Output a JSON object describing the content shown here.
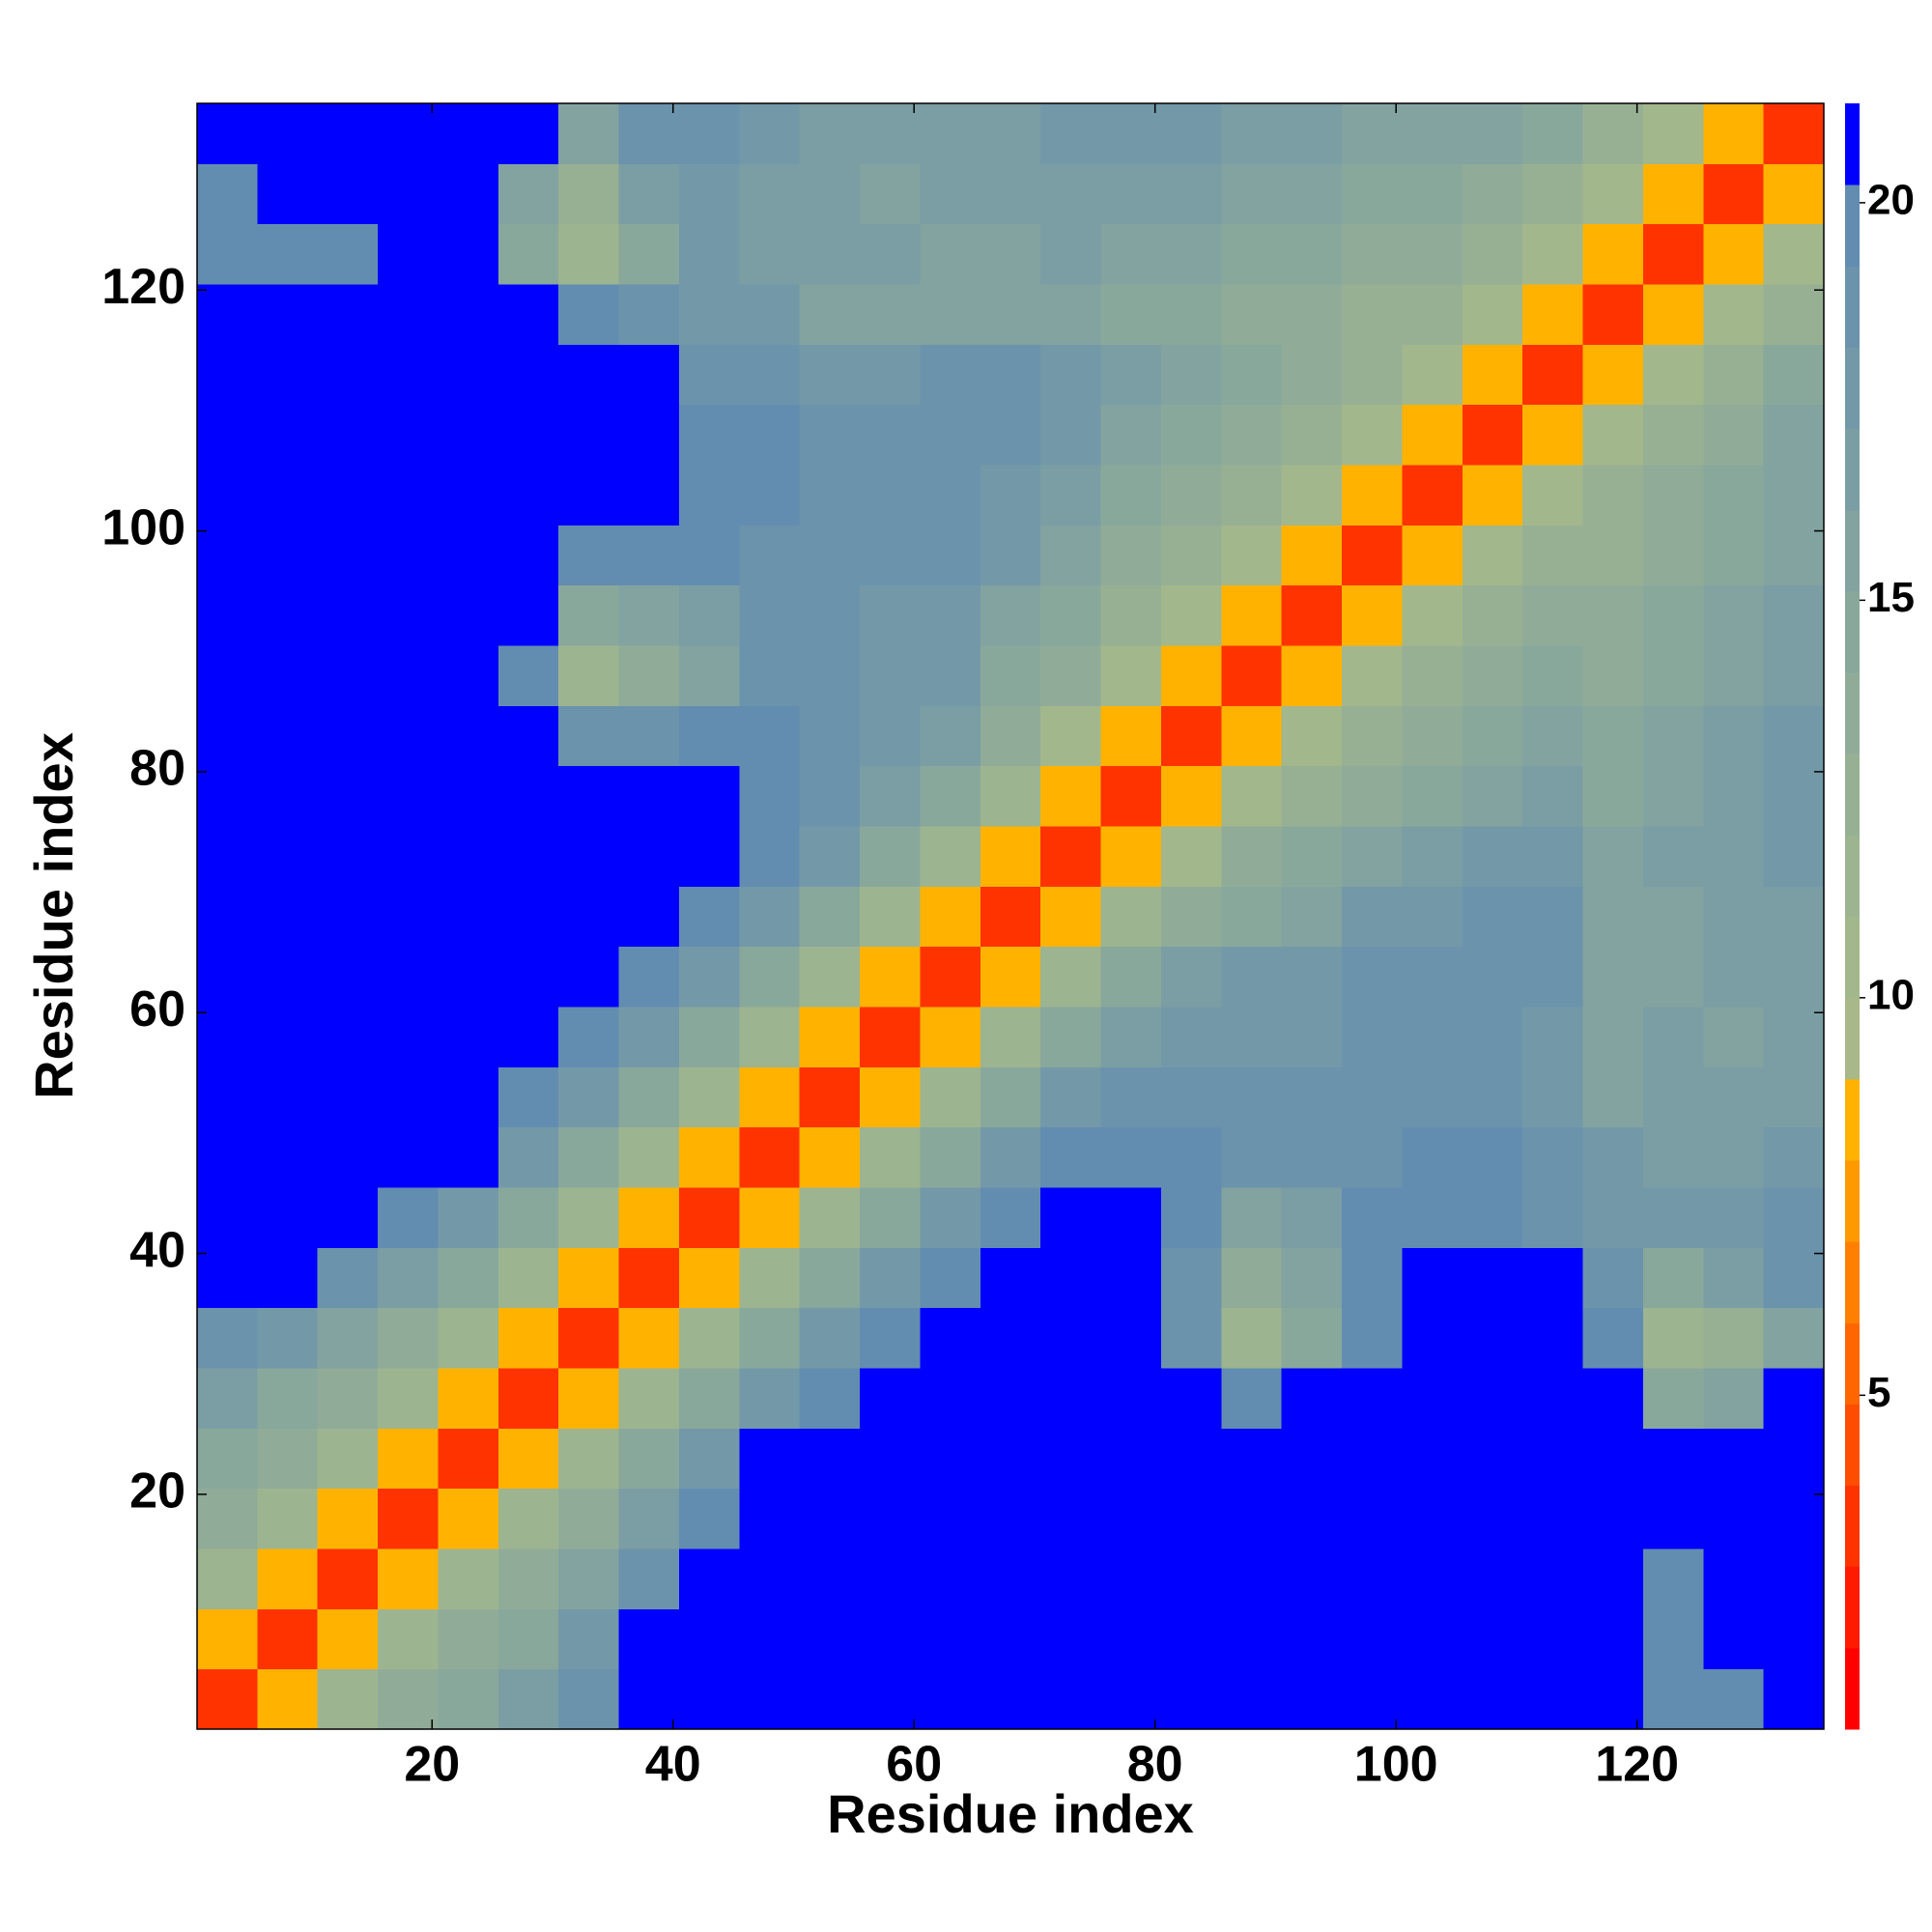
{
  "chart_data": {
    "type": "heatmap",
    "x_label": "Residue index",
    "y_label": "Residue index",
    "x": [
      3,
      8,
      13,
      18,
      23,
      28,
      33,
      38,
      43,
      48,
      53,
      58,
      63,
      68,
      73,
      78,
      83,
      88,
      93,
      98,
      103,
      108,
      113,
      118,
      123,
      128,
      133
    ],
    "y": [
      3,
      8,
      13,
      18,
      23,
      28,
      33,
      38,
      43,
      48,
      53,
      58,
      63,
      68,
      73,
      78,
      83,
      88,
      93,
      98,
      103,
      108,
      113,
      118,
      123,
      128,
      133
    ],
    "xlim": [
      0.5,
      135.5
    ],
    "ylim": [
      0.5,
      135.5
    ],
    "xticks": [
      20,
      40,
      60,
      80,
      100,
      120
    ],
    "yticks": [
      20,
      40,
      60,
      80,
      100,
      120
    ],
    "zlim": [
      0.8,
      21.25
    ],
    "zticks": [
      5,
      10,
      15,
      20
    ],
    "colors": [
      "#ff0000",
      "#ff1a00",
      "#ff3300",
      "#ff4d00",
      "#ff6600",
      "#ff8000",
      "#ff9900",
      "#ffb300",
      "#a8b888",
      "#a3b78c",
      "#9db490",
      "#97b094",
      "#90ac98",
      "#89a89c",
      "#82a3a0",
      "#7b9ea4",
      "#7399a8",
      "#6b93ac",
      "#638db0",
      "#0000ff"
    ],
    "z": [
      [
        3,
        8,
        12,
        14,
        15,
        17,
        19,
        21,
        21,
        21,
        21,
        21,
        21,
        21,
        21,
        21,
        21,
        21,
        21,
        21,
        21,
        21,
        21,
        21,
        20,
        20,
        21
      ],
      [
        8,
        3,
        8,
        12,
        14,
        15,
        18,
        21,
        21,
        21,
        21,
        21,
        21,
        21,
        21,
        21,
        21,
        21,
        21,
        21,
        21,
        21,
        21,
        21,
        20,
        21,
        21
      ],
      [
        12,
        8,
        3,
        8,
        12,
        14,
        16,
        19,
        21,
        21,
        21,
        21,
        21,
        21,
        21,
        21,
        21,
        21,
        21,
        21,
        21,
        21,
        21,
        21,
        20,
        21,
        21
      ],
      [
        14,
        12,
        8,
        3,
        8,
        12,
        14,
        17,
        20,
        21,
        21,
        21,
        21,
        21,
        21,
        21,
        21,
        21,
        21,
        21,
        21,
        21,
        21,
        21,
        21,
        21,
        21
      ],
      [
        15,
        14,
        12,
        8,
        3,
        8,
        12,
        15,
        18,
        21,
        21,
        21,
        21,
        21,
        21,
        21,
        21,
        21,
        21,
        21,
        21,
        21,
        21,
        21,
        21,
        21,
        21
      ],
      [
        17,
        15,
        14,
        12,
        8,
        3,
        8,
        12,
        15,
        18,
        20,
        21,
        21,
        21,
        21,
        21,
        21,
        20,
        21,
        21,
        21,
        21,
        21,
        21,
        15,
        16,
        21
      ],
      [
        19,
        18,
        16,
        14,
        12,
        8,
        3,
        8,
        12,
        15,
        18,
        20,
        21,
        21,
        21,
        21,
        19,
        12,
        15,
        20,
        21,
        21,
        21,
        20,
        12,
        13,
        16
      ],
      [
        21,
        21,
        19,
        17,
        15,
        12,
        8,
        3,
        8,
        12,
        15,
        18,
        20,
        21,
        21,
        21,
        19,
        14,
        16,
        20,
        21,
        21,
        21,
        19,
        15,
        17,
        19
      ],
      [
        21,
        21,
        21,
        20,
        18,
        15,
        12,
        8,
        3,
        8,
        12,
        15,
        18,
        20,
        21,
        21,
        20,
        16,
        17,
        20,
        20,
        20,
        19,
        18,
        18,
        18,
        19
      ],
      [
        21,
        21,
        21,
        21,
        21,
        18,
        15,
        12,
        8,
        3,
        8,
        12,
        15,
        18,
        20,
        20,
        20,
        19,
        19,
        19,
        20,
        20,
        19,
        18,
        17,
        17,
        18
      ],
      [
        21,
        21,
        21,
        21,
        21,
        20,
        18,
        15,
        12,
        8,
        3,
        8,
        12,
        15,
        18,
        19,
        19,
        19,
        19,
        19,
        19,
        19,
        18,
        16,
        17,
        17,
        17
      ],
      [
        21,
        21,
        21,
        21,
        21,
        21,
        20,
        18,
        15,
        12,
        8,
        3,
        8,
        12,
        15,
        17,
        18,
        18,
        18,
        19,
        19,
        19,
        18,
        16,
        17,
        16,
        17
      ],
      [
        21,
        21,
        21,
        21,
        21,
        21,
        21,
        20,
        18,
        15,
        12,
        8,
        3,
        8,
        12,
        15,
        17,
        18,
        18,
        19,
        19,
        19,
        19,
        16,
        16,
        17,
        17
      ],
      [
        21,
        21,
        21,
        21,
        21,
        21,
        21,
        21,
        20,
        18,
        15,
        12,
        8,
        3,
        8,
        12,
        14,
        15,
        16,
        18,
        18,
        19,
        19,
        16,
        16,
        17,
        17
      ],
      [
        21,
        21,
        21,
        21,
        21,
        21,
        21,
        21,
        21,
        20,
        18,
        15,
        12,
        8,
        3,
        8,
        11,
        14,
        15,
        16,
        17,
        18,
        18,
        16,
        17,
        17,
        18
      ],
      [
        21,
        21,
        21,
        21,
        21,
        21,
        21,
        21,
        21,
        20,
        19,
        17,
        15,
        12,
        8,
        3,
        8,
        11,
        13,
        14,
        15,
        16,
        17,
        15,
        16,
        17,
        18
      ],
      [
        21,
        21,
        21,
        21,
        21,
        21,
        19,
        19,
        20,
        20,
        19,
        18,
        17,
        14,
        11,
        8,
        3,
        8,
        11,
        13,
        14,
        15,
        16,
        15,
        16,
        17,
        18
      ],
      [
        21,
        21,
        21,
        21,
        21,
        20,
        12,
        14,
        16,
        19,
        19,
        18,
        18,
        15,
        14,
        11,
        8,
        3,
        8,
        11,
        13,
        14,
        15,
        14,
        15,
        16,
        17
      ],
      [
        21,
        21,
        21,
        21,
        21,
        21,
        15,
        16,
        17,
        19,
        19,
        18,
        18,
        16,
        15,
        13,
        11,
        8,
        3,
        8,
        11,
        13,
        14,
        14,
        15,
        16,
        17
      ],
      [
        21,
        21,
        21,
        21,
        21,
        21,
        20,
        20,
        20,
        19,
        19,
        19,
        19,
        18,
        16,
        14,
        13,
        11,
        8,
        3,
        8,
        11,
        13,
        13,
        14,
        15,
        16
      ],
      [
        21,
        21,
        21,
        21,
        21,
        21,
        21,
        21,
        20,
        20,
        19,
        19,
        19,
        18,
        17,
        15,
        14,
        13,
        11,
        8,
        3,
        8,
        11,
        13,
        14,
        15,
        16
      ],
      [
        21,
        21,
        21,
        21,
        21,
        21,
        21,
        21,
        20,
        20,
        19,
        19,
        19,
        19,
        18,
        16,
        15,
        14,
        13,
        11,
        8,
        3,
        8,
        11,
        13,
        14,
        16
      ],
      [
        21,
        21,
        21,
        21,
        21,
        21,
        21,
        21,
        19,
        19,
        18,
        18,
        19,
        19,
        18,
        17,
        16,
        15,
        14,
        13,
        11,
        8,
        3,
        8,
        11,
        13,
        15
      ],
      [
        21,
        21,
        21,
        21,
        21,
        21,
        20,
        19,
        18,
        18,
        16,
        16,
        16,
        16,
        16,
        15,
        15,
        14,
        14,
        13,
        13,
        11,
        8,
        3,
        8,
        11,
        13
      ],
      [
        20,
        20,
        20,
        21,
        21,
        15,
        12,
        15,
        18,
        17,
        17,
        17,
        16,
        16,
        17,
        16,
        16,
        15,
        15,
        14,
        14,
        13,
        11,
        8,
        3,
        8,
        11
      ],
      [
        20,
        21,
        21,
        21,
        21,
        16,
        13,
        17,
        18,
        17,
        17,
        16,
        17,
        17,
        17,
        17,
        17,
        16,
        16,
        15,
        15,
        14,
        13,
        11,
        8,
        3,
        8
      ],
      [
        21,
        21,
        21,
        21,
        21,
        21,
        16,
        19,
        19,
        18,
        17,
        17,
        17,
        17,
        18,
        18,
        18,
        17,
        17,
        16,
        16,
        16,
        15,
        13,
        11,
        8,
        3
      ]
    ]
  }
}
